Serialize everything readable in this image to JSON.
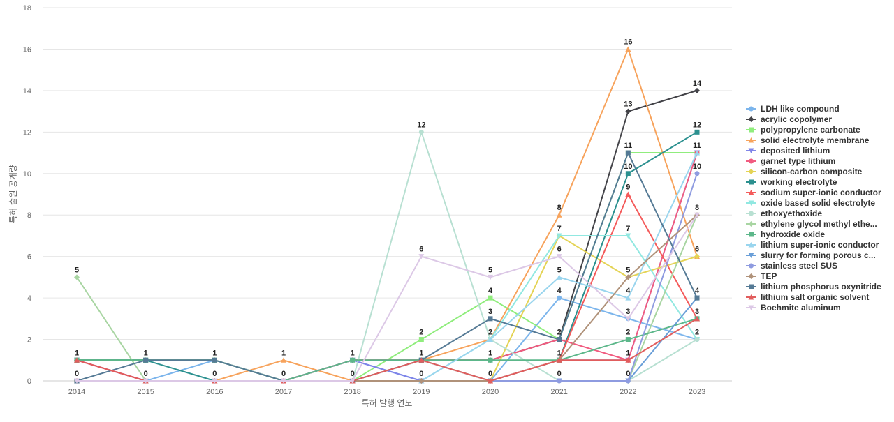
{
  "chart_data": {
    "type": "line",
    "title": "",
    "xlabel": "특허 발행 연도",
    "ylabel": "특허 출원 공개량",
    "x": [
      "2014",
      "2015",
      "2016",
      "2017",
      "2018",
      "2019",
      "2020",
      "2021",
      "2022",
      "2023"
    ],
    "ylim": [
      0,
      18
    ],
    "yticks": [
      0,
      2,
      4,
      6,
      8,
      10,
      12,
      14,
      16,
      18
    ],
    "grid": true,
    "legend_position": "right",
    "series": [
      {
        "name": "LDH like compound",
        "color": "#7cb5ec",
        "marker": "circle",
        "values": [
          0,
          0,
          1,
          0,
          1,
          0,
          0,
          4,
          3,
          2
        ]
      },
      {
        "name": "acrylic copolymer",
        "color": "#434348",
        "marker": "diamond",
        "values": [
          1,
          1,
          1,
          0,
          1,
          1,
          1,
          2,
          13,
          14
        ]
      },
      {
        "name": "polypropylene carbonate",
        "color": "#90ed7d",
        "marker": "square",
        "values": [
          1,
          1,
          1,
          0,
          0,
          2,
          4,
          2,
          11,
          11
        ]
      },
      {
        "name": "solid electrolyte membrane",
        "color": "#f7a35c",
        "marker": "triangle",
        "values": [
          0,
          0,
          0,
          1,
          0,
          1,
          2,
          8,
          16,
          6
        ]
      },
      {
        "name": "deposited lithium",
        "color": "#8085e9",
        "marker": "triangle-down",
        "values": [
          1,
          0,
          0,
          0,
          1,
          0,
          0,
          1,
          1,
          11
        ]
      },
      {
        "name": "garnet type lithium",
        "color": "#f15c80",
        "marker": "circle",
        "values": [
          1,
          0,
          0,
          0,
          1,
          1,
          1,
          2,
          1,
          11
        ]
      },
      {
        "name": "silicon-carbon composite",
        "color": "#e4d354",
        "marker": "diamond",
        "values": [
          0,
          0,
          0,
          0,
          0,
          0,
          0,
          7,
          5,
          6
        ]
      },
      {
        "name": "working electrolyte",
        "color": "#2b908f",
        "marker": "square",
        "values": [
          1,
          1,
          0,
          0,
          0,
          1,
          0,
          1,
          10,
          12
        ]
      },
      {
        "name": "sodium super-ionic conductor",
        "color": "#f45b5b",
        "marker": "triangle",
        "values": [
          0,
          0,
          0,
          0,
          0,
          0,
          0,
          1,
          9,
          3
        ]
      },
      {
        "name": "oxide based solid electrolyte",
        "color": "#91e8e1",
        "marker": "triangle-down",
        "values": [
          0,
          0,
          0,
          0,
          0,
          0,
          2,
          7,
          7,
          2
        ]
      },
      {
        "name": "ethoxyethoxide",
        "color": "#b8e0d2",
        "marker": "circle",
        "values": [
          0,
          0,
          0,
          0,
          0,
          12,
          2,
          0,
          0,
          2
        ]
      },
      {
        "name": "ethylene glycol methyl ethe...",
        "color": "#a8d5a2",
        "marker": "diamond",
        "values": [
          5,
          0,
          0,
          0,
          0,
          0,
          0,
          0,
          0,
          8
        ]
      },
      {
        "name": "hydroxide oxide",
        "color": "#5cb78a",
        "marker": "square",
        "values": [
          1,
          1,
          1,
          0,
          1,
          1,
          1,
          1,
          2,
          3
        ]
      },
      {
        "name": "lithium super-ionic conductor",
        "color": "#99d5ee",
        "marker": "triangle",
        "values": [
          0,
          0,
          0,
          0,
          0,
          0,
          2,
          5,
          4,
          11
        ]
      },
      {
        "name": "slurry for forming porous c...",
        "color": "#6a9fd8",
        "marker": "triangle-down",
        "values": [
          0,
          0,
          0,
          0,
          0,
          0,
          0,
          0,
          0,
          4
        ]
      },
      {
        "name": "stainless steel SUS",
        "color": "#8e9be0",
        "marker": "circle",
        "values": [
          0,
          0,
          0,
          0,
          0,
          0,
          0,
          0,
          0,
          10
        ]
      },
      {
        "name": "TEP",
        "color": "#b0927a",
        "marker": "diamond",
        "values": [
          0,
          0,
          0,
          0,
          0,
          0,
          0,
          1,
          5,
          8
        ]
      },
      {
        "name": "lithium phosphorus oxynitride",
        "color": "#557a95",
        "marker": "square",
        "values": [
          0,
          1,
          1,
          0,
          0,
          1,
          3,
          2,
          11,
          4
        ]
      },
      {
        "name": "lithium salt organic solvent",
        "color": "#e15d5d",
        "marker": "triangle",
        "values": [
          1,
          0,
          0,
          0,
          0,
          1,
          0,
          1,
          1,
          3
        ]
      },
      {
        "name": "Boehmite aluminum",
        "color": "#dcc8e6",
        "marker": "triangle-down",
        "values": [
          0,
          0,
          0,
          0,
          0,
          6,
          5,
          6,
          3,
          8
        ]
      }
    ],
    "data_labels": [
      {
        "x": "2014",
        "y": 5,
        "text": "5"
      },
      {
        "x": "2014",
        "y": 1,
        "text": "1"
      },
      {
        "x": "2014",
        "y": 0,
        "text": "0"
      },
      {
        "x": "2015",
        "y": 1,
        "text": "1"
      },
      {
        "x": "2015",
        "y": 0,
        "text": "0"
      },
      {
        "x": "2016",
        "y": 1,
        "text": "1"
      },
      {
        "x": "2016",
        "y": 0,
        "text": "0"
      },
      {
        "x": "2017",
        "y": 1,
        "text": "1"
      },
      {
        "x": "2017",
        "y": 0,
        "text": "0"
      },
      {
        "x": "2018",
        "y": 1,
        "text": "1"
      },
      {
        "x": "2018",
        "y": 0,
        "text": "0"
      },
      {
        "x": "2019",
        "y": 12,
        "text": "12"
      },
      {
        "x": "2019",
        "y": 6,
        "text": "6"
      },
      {
        "x": "2019",
        "y": 2,
        "text": "2"
      },
      {
        "x": "2019",
        "y": 1,
        "text": "1"
      },
      {
        "x": "2019",
        "y": 0,
        "text": "0"
      },
      {
        "x": "2020",
        "y": 5,
        "text": "5"
      },
      {
        "x": "2020",
        "y": 4,
        "text": "4"
      },
      {
        "x": "2020",
        "y": 3,
        "text": "3"
      },
      {
        "x": "2020",
        "y": 2,
        "text": "2"
      },
      {
        "x": "2020",
        "y": 1,
        "text": "1"
      },
      {
        "x": "2020",
        "y": 0,
        "text": "0"
      },
      {
        "x": "2021",
        "y": 8,
        "text": "8"
      },
      {
        "x": "2021",
        "y": 7,
        "text": "7"
      },
      {
        "x": "2021",
        "y": 6,
        "text": "6"
      },
      {
        "x": "2021",
        "y": 5,
        "text": "5"
      },
      {
        "x": "2021",
        "y": 4,
        "text": "4"
      },
      {
        "x": "2021",
        "y": 2,
        "text": "2"
      },
      {
        "x": "2021",
        "y": 1,
        "text": "1"
      },
      {
        "x": "2021",
        "y": 0,
        "text": "0"
      },
      {
        "x": "2022",
        "y": 16,
        "text": "16"
      },
      {
        "x": "2022",
        "y": 13,
        "text": "13"
      },
      {
        "x": "2022",
        "y": 11,
        "text": "11"
      },
      {
        "x": "2022",
        "y": 10,
        "text": "10"
      },
      {
        "x": "2022",
        "y": 9,
        "text": "9"
      },
      {
        "x": "2022",
        "y": 7,
        "text": "7"
      },
      {
        "x": "2022",
        "y": 5,
        "text": "5"
      },
      {
        "x": "2022",
        "y": 4,
        "text": "4"
      },
      {
        "x": "2022",
        "y": 3,
        "text": "3"
      },
      {
        "x": "2022",
        "y": 2,
        "text": "2"
      },
      {
        "x": "2022",
        "y": 1,
        "text": "1"
      },
      {
        "x": "2022",
        "y": 0,
        "text": "0"
      },
      {
        "x": "2023",
        "y": 14,
        "text": "14"
      },
      {
        "x": "2023",
        "y": 12,
        "text": "12"
      },
      {
        "x": "2023",
        "y": 11,
        "text": "11"
      },
      {
        "x": "2023",
        "y": 10,
        "text": "10"
      },
      {
        "x": "2023",
        "y": 8,
        "text": "8"
      },
      {
        "x": "2023",
        "y": 6,
        "text": "6"
      },
      {
        "x": "2023",
        "y": 4,
        "text": "4"
      },
      {
        "x": "2023",
        "y": 3,
        "text": "3"
      },
      {
        "x": "2023",
        "y": 2,
        "text": "2"
      }
    ]
  }
}
